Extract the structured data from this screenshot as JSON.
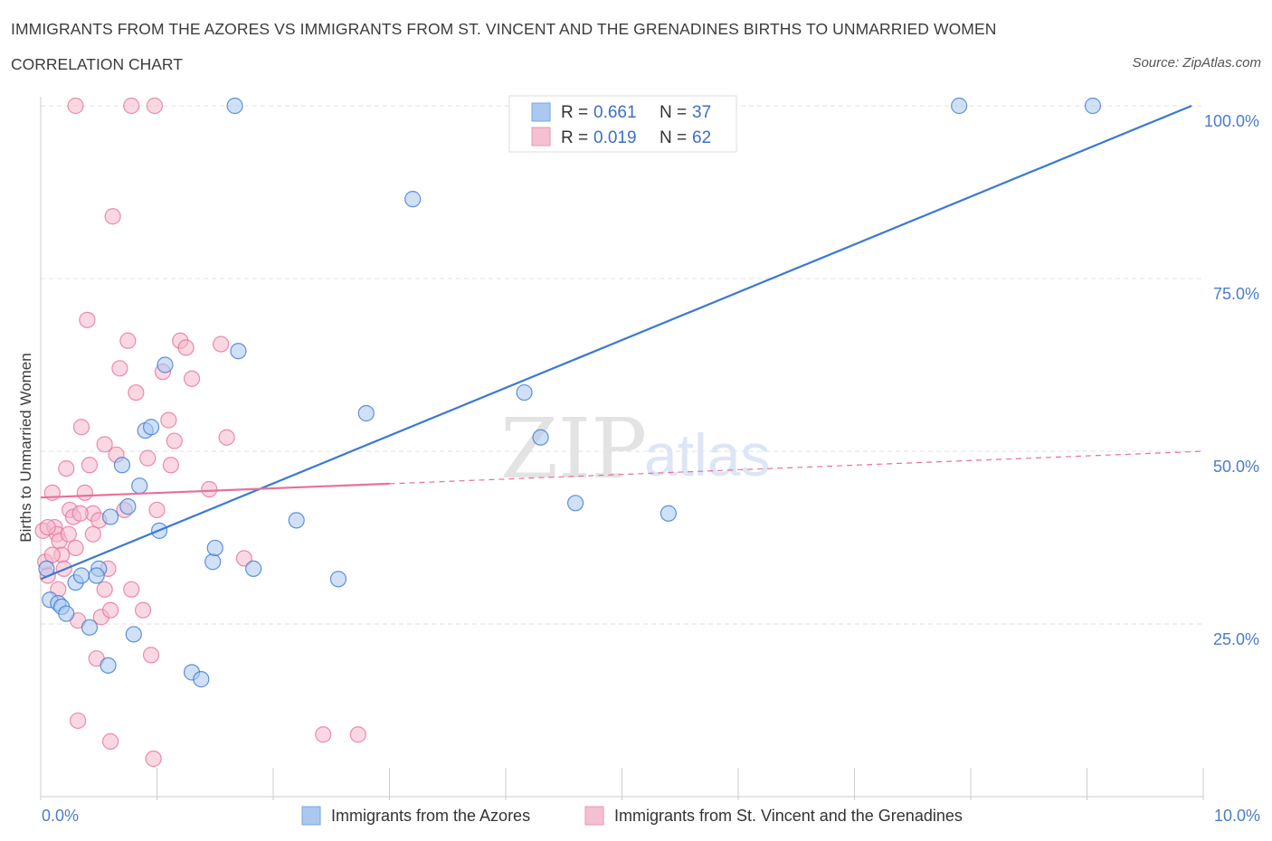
{
  "header": {
    "title": "IMMIGRANTS FROM THE AZORES VS IMMIGRANTS FROM ST. VINCENT AND THE GRENADINES BIRTHS TO UNMARRIED WOMEN",
    "subtitle": "CORRELATION CHART",
    "source": "Source: ZipAtlas.com"
  },
  "watermark": {
    "zip": "ZIP",
    "atlas": "atlas"
  },
  "colors": {
    "blue": "#3a78d4",
    "blue_fill": "#aac8f0",
    "pink": "#e8709a",
    "pink_fill": "#f5b8cb",
    "grid": "#dddddd",
    "tick_label": "#4a7cc9"
  },
  "legend": {
    "rows": [
      {
        "r_label": "R =",
        "r_value": "0.661",
        "n_label": "N =",
        "n_value": "37"
      },
      {
        "r_label": "R =",
        "r_value": "0.019",
        "n_label": "N =",
        "n_value": "62"
      }
    ]
  },
  "chart_data": {
    "type": "scatter",
    "title": "IMMIGRANTS FROM THE AZORES VS IMMIGRANTS FROM ST. VINCENT AND THE GRENADINES BIRTHS TO UNMARRIED WOMEN",
    "xlabel": "",
    "ylabel": "Births to Unmarried Women",
    "xlim": [
      0,
      10
    ],
    "ylim": [
      0,
      100
    ],
    "x_tick_labels": [
      "0.0%",
      "10.0%"
    ],
    "y_tick_labels": [
      "100.0%",
      "75.0%",
      "50.0%",
      "25.0%"
    ],
    "y_tick_values": [
      100,
      75,
      50,
      25
    ],
    "legend_position": "top-center",
    "series": [
      {
        "name": "Immigrants from the Azores",
        "color": "blue",
        "R": 0.661,
        "N": 37,
        "trend": {
          "x": [
            0,
            9.9
          ],
          "y": [
            31.5,
            100
          ]
        },
        "points": [
          [
            0.05,
            33
          ],
          [
            0.08,
            28.5
          ],
          [
            0.15,
            28
          ],
          [
            0.18,
            27.5
          ],
          [
            0.22,
            26.5
          ],
          [
            0.3,
            31
          ],
          [
            0.35,
            32
          ],
          [
            0.42,
            24.5
          ],
          [
            0.5,
            33
          ],
          [
            0.48,
            32
          ],
          [
            0.58,
            19
          ],
          [
            0.6,
            40.5
          ],
          [
            0.7,
            48
          ],
          [
            0.75,
            42
          ],
          [
            0.8,
            23.5
          ],
          [
            0.85,
            45
          ],
          [
            0.9,
            53
          ],
          [
            0.95,
            53.5
          ],
          [
            1.02,
            38.5
          ],
          [
            1.07,
            62.5
          ],
          [
            1.3,
            18
          ],
          [
            1.38,
            17
          ],
          [
            1.48,
            34
          ],
          [
            1.5,
            36
          ],
          [
            1.67,
            100
          ],
          [
            1.7,
            64.5
          ],
          [
            1.83,
            33
          ],
          [
            2.2,
            40
          ],
          [
            2.56,
            31.5
          ],
          [
            2.8,
            55.5
          ],
          [
            3.2,
            86.5
          ],
          [
            4.16,
            58.5
          ],
          [
            4.3,
            52
          ],
          [
            4.6,
            42.5
          ],
          [
            5.4,
            41
          ],
          [
            7.9,
            100
          ],
          [
            9.05,
            100
          ]
        ]
      },
      {
        "name": "Immigrants from St. Vincent and the Grenadines",
        "color": "pink",
        "R": 0.019,
        "N": 62,
        "trend": {
          "x": [
            0,
            3.0
          ],
          "y": [
            43.3,
            45.3
          ],
          "dashed_extension": {
            "x": [
              3.0,
              10
            ],
            "y": [
              45.3,
              50
            ]
          }
        },
        "points": [
          [
            0.02,
            38.5
          ],
          [
            0.04,
            34
          ],
          [
            0.06,
            32
          ],
          [
            0.1,
            44
          ],
          [
            0.12,
            39
          ],
          [
            0.14,
            38
          ],
          [
            0.16,
            37
          ],
          [
            0.18,
            35
          ],
          [
            0.2,
            33
          ],
          [
            0.22,
            47.5
          ],
          [
            0.25,
            41.5
          ],
          [
            0.28,
            40.5
          ],
          [
            0.3,
            36
          ],
          [
            0.32,
            25.5
          ],
          [
            0.35,
            53.5
          ],
          [
            0.38,
            44
          ],
          [
            0.4,
            69
          ],
          [
            0.42,
            48
          ],
          [
            0.45,
            41
          ],
          [
            0.48,
            20
          ],
          [
            0.5,
            40
          ],
          [
            0.52,
            26
          ],
          [
            0.55,
            51
          ],
          [
            0.58,
            33
          ],
          [
            0.6,
            27
          ],
          [
            0.62,
            84
          ],
          [
            0.65,
            49.5
          ],
          [
            0.68,
            62
          ],
          [
            0.72,
            41.5
          ],
          [
            0.75,
            66
          ],
          [
            0.78,
            30
          ],
          [
            0.82,
            58.5
          ],
          [
            0.88,
            27
          ],
          [
            0.92,
            49
          ],
          [
            0.95,
            20.5
          ],
          [
            1.0,
            41.5
          ],
          [
            1.05,
            61.5
          ],
          [
            1.1,
            54.5
          ],
          [
            1.15,
            51.5
          ],
          [
            1.2,
            66
          ],
          [
            1.25,
            65
          ],
          [
            1.3,
            60.5
          ],
          [
            1.45,
            44.5
          ],
          [
            1.6,
            52
          ],
          [
            1.75,
            34.5
          ],
          [
            0.3,
            100
          ],
          [
            0.78,
            100
          ],
          [
            0.98,
            100
          ],
          [
            0.32,
            11
          ],
          [
            0.6,
            8
          ],
          [
            0.97,
            5.5
          ],
          [
            2.43,
            9
          ],
          [
            2.73,
            9
          ],
          [
            0.06,
            39
          ],
          [
            0.1,
            35
          ],
          [
            0.15,
            30
          ],
          [
            0.34,
            41
          ],
          [
            0.45,
            38
          ],
          [
            0.55,
            30
          ],
          [
            1.12,
            48
          ],
          [
            1.55,
            65.5
          ],
          [
            0.24,
            38
          ]
        ]
      }
    ],
    "bottom_legend": [
      "Immigrants from the Azores",
      "Immigrants from St. Vincent and the Grenadines"
    ]
  }
}
